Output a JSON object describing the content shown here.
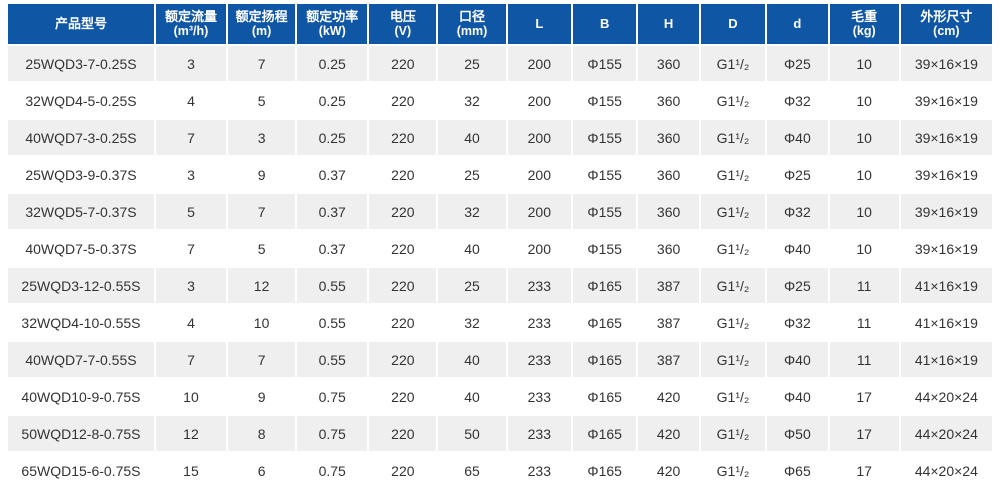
{
  "colors": {
    "header_bg": "#0f56a5",
    "row_alt": "#efefef",
    "row_main": "#ffffff",
    "header_text": "#ffffff",
    "body_text": "#333333"
  },
  "table": {
    "columns": [
      {
        "label": "产品型号",
        "unit": ""
      },
      {
        "label": "额定流量",
        "unit": "(m³/h)"
      },
      {
        "label": "额定扬程",
        "unit": "(m)"
      },
      {
        "label": "额定功率",
        "unit": "(kW)"
      },
      {
        "label": "电压",
        "unit": "(V)"
      },
      {
        "label": "口径",
        "unit": "(mm)"
      },
      {
        "label": "L",
        "unit": ""
      },
      {
        "label": "B",
        "unit": ""
      },
      {
        "label": "H",
        "unit": ""
      },
      {
        "label": "D",
        "unit": ""
      },
      {
        "label": "d",
        "unit": ""
      },
      {
        "label": "毛重",
        "unit": "(kg)"
      },
      {
        "label": "外形尺寸",
        "unit": "(cm)"
      }
    ],
    "rows": [
      [
        "25WQD3-7-0.25S",
        "3",
        "7",
        "0.25",
        "220",
        "25",
        "200",
        "Φ155",
        "360",
        "G1¹/₂",
        "Φ25",
        "10",
        "39×16×19"
      ],
      [
        "32WQD4-5-0.25S",
        "4",
        "5",
        "0.25",
        "220",
        "32",
        "200",
        "Φ155",
        "360",
        "G1¹/₂",
        "Φ32",
        "10",
        "39×16×19"
      ],
      [
        "40WQD7-3-0.25S",
        "7",
        "3",
        "0.25",
        "220",
        "40",
        "200",
        "Φ155",
        "360",
        "G1¹/₂",
        "Φ40",
        "10",
        "39×16×19"
      ],
      [
        "25WQD3-9-0.37S",
        "3",
        "9",
        "0.37",
        "220",
        "25",
        "200",
        "Φ155",
        "360",
        "G1¹/₂",
        "Φ25",
        "10",
        "39×16×19"
      ],
      [
        "32WQD5-7-0.37S",
        "5",
        "7",
        "0.37",
        "220",
        "32",
        "200",
        "Φ155",
        "360",
        "G1¹/₂",
        "Φ32",
        "10",
        "39×16×19"
      ],
      [
        "40WQD7-5-0.37S",
        "7",
        "5",
        "0.37",
        "220",
        "40",
        "200",
        "Φ155",
        "360",
        "G1¹/₂",
        "Φ40",
        "10",
        "39×16×19"
      ],
      [
        "25WQD3-12-0.55S",
        "3",
        "12",
        "0.55",
        "220",
        "25",
        "233",
        "Φ165",
        "387",
        "G1¹/₂",
        "Φ25",
        "11",
        "41×16×19"
      ],
      [
        "32WQD4-10-0.55S",
        "4",
        "10",
        "0.55",
        "220",
        "32",
        "233",
        "Φ165",
        "387",
        "G1¹/₂",
        "Φ32",
        "11",
        "41×16×19"
      ],
      [
        "40WQD7-7-0.55S",
        "7",
        "7",
        "0.55",
        "220",
        "40",
        "233",
        "Φ165",
        "387",
        "G1¹/₂",
        "Φ40",
        "11",
        "41×16×19"
      ],
      [
        "40WQD10-9-0.75S",
        "10",
        "9",
        "0.75",
        "220",
        "40",
        "233",
        "Φ165",
        "420",
        "G1¹/₂",
        "Φ40",
        "17",
        "44×20×24"
      ],
      [
        "50WQD12-8-0.75S",
        "12",
        "8",
        "0.75",
        "220",
        "50",
        "233",
        "Φ165",
        "420",
        "G1¹/₂",
        "Φ50",
        "17",
        "44×20×24"
      ],
      [
        "65WQD15-6-0.75S",
        "15",
        "6",
        "0.75",
        "220",
        "65",
        "233",
        "Φ165",
        "420",
        "G1¹/₂",
        "Φ65",
        "17",
        "44×20×24"
      ]
    ]
  }
}
